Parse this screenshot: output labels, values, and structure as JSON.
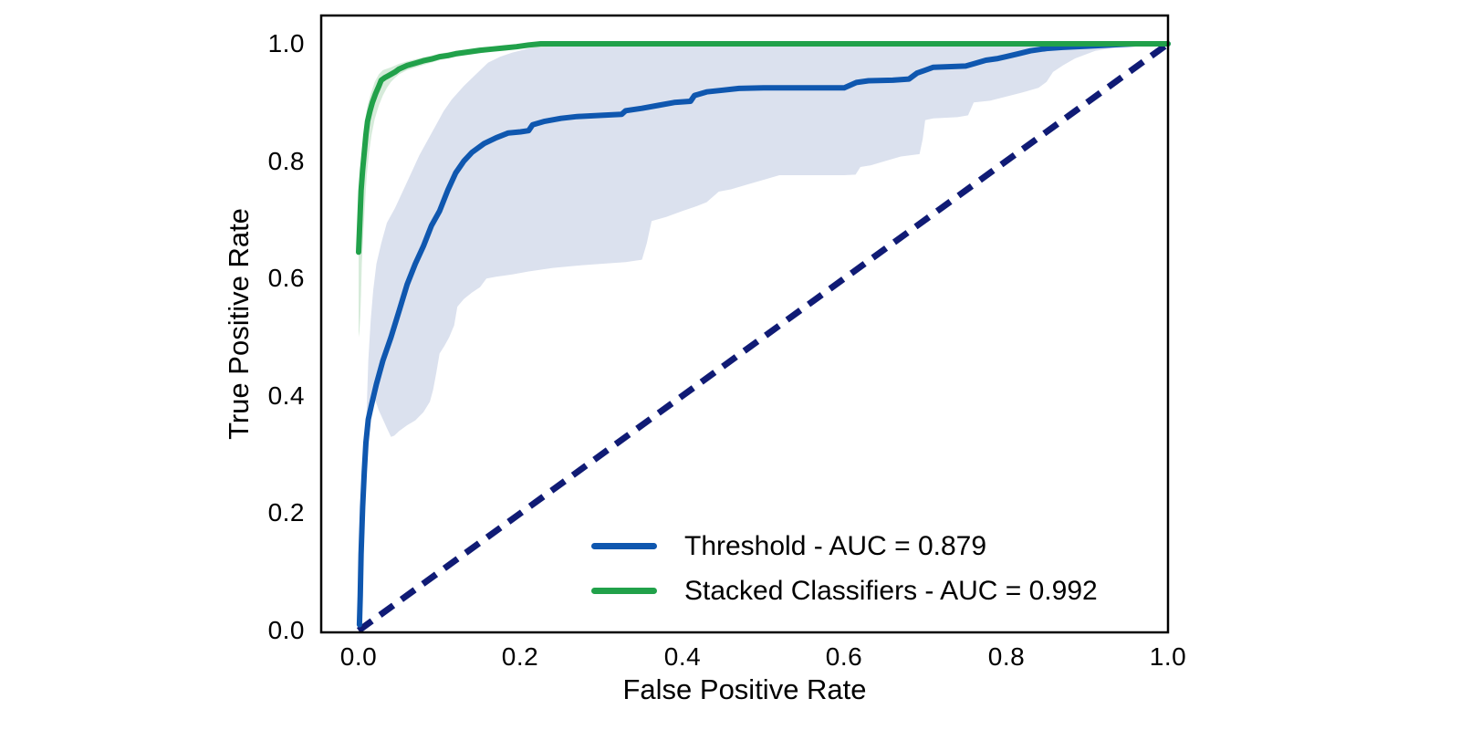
{
  "chart_data": {
    "type": "line",
    "title": "",
    "xlabel": "False Positive Rate",
    "ylabel": "True Positive Rate",
    "xlim": [
      -0.046,
      1.0
    ],
    "ylim": [
      0.0,
      1.048
    ],
    "grid": false,
    "legend_position": "lower-right",
    "x_tick_labels": [
      "0.0",
      "0.2",
      "0.4",
      "0.6",
      "0.8",
      "1.0"
    ],
    "y_tick_labels": [
      "0.0",
      "0.2",
      "0.4",
      "0.6",
      "0.8",
      "1.0"
    ],
    "diagonal": {
      "name": "chance-line",
      "style": "dashed",
      "color": "#101b75",
      "dash": "18 11",
      "width": 7,
      "from": [
        0,
        0
      ],
      "to": [
        1,
        1
      ]
    },
    "series": [
      {
        "name": "Threshold - AUC = 0.879",
        "auc": 0.879,
        "color": "#0f57af",
        "band_color": "#dbe1ee",
        "band_opacity": 1.0,
        "points": [
          [
            0.001,
            0.01
          ],
          [
            0.002,
            0.06
          ],
          [
            0.003,
            0.13
          ],
          [
            0.005,
            0.21
          ],
          [
            0.007,
            0.27
          ],
          [
            0.009,
            0.32
          ],
          [
            0.012,
            0.36
          ],
          [
            0.016,
            0.385
          ],
          [
            0.022,
            0.42
          ],
          [
            0.03,
            0.46
          ],
          [
            0.04,
            0.5
          ],
          [
            0.05,
            0.545
          ],
          [
            0.06,
            0.59
          ],
          [
            0.07,
            0.625
          ],
          [
            0.08,
            0.655
          ],
          [
            0.09,
            0.69
          ],
          [
            0.1,
            0.715
          ],
          [
            0.11,
            0.75
          ],
          [
            0.12,
            0.78
          ],
          [
            0.13,
            0.8
          ],
          [
            0.14,
            0.815
          ],
          [
            0.155,
            0.83
          ],
          [
            0.17,
            0.84
          ],
          [
            0.185,
            0.848
          ],
          [
            0.2,
            0.85
          ],
          [
            0.21,
            0.852
          ],
          [
            0.215,
            0.862
          ],
          [
            0.23,
            0.868
          ],
          [
            0.25,
            0.873
          ],
          [
            0.27,
            0.876
          ],
          [
            0.3,
            0.878
          ],
          [
            0.325,
            0.88
          ],
          [
            0.33,
            0.886
          ],
          [
            0.35,
            0.89
          ],
          [
            0.37,
            0.895
          ],
          [
            0.39,
            0.9
          ],
          [
            0.41,
            0.902
          ],
          [
            0.415,
            0.912
          ],
          [
            0.43,
            0.918
          ],
          [
            0.45,
            0.921
          ],
          [
            0.47,
            0.924
          ],
          [
            0.5,
            0.925
          ],
          [
            0.6,
            0.925
          ],
          [
            0.615,
            0.934
          ],
          [
            0.63,
            0.937
          ],
          [
            0.66,
            0.938
          ],
          [
            0.68,
            0.94
          ],
          [
            0.69,
            0.95
          ],
          [
            0.7,
            0.955
          ],
          [
            0.71,
            0.96
          ],
          [
            0.75,
            0.962
          ],
          [
            0.76,
            0.966
          ],
          [
            0.775,
            0.972
          ],
          [
            0.79,
            0.975
          ],
          [
            0.8,
            0.978
          ],
          [
            0.815,
            0.983
          ],
          [
            0.83,
            0.988
          ],
          [
            0.85,
            0.992
          ],
          [
            0.87,
            0.994
          ],
          [
            0.9,
            0.996
          ],
          [
            0.93,
            0.998
          ],
          [
            0.96,
            1.0
          ],
          [
            1.0,
            1.0
          ]
        ],
        "band": [
          [
            0.008,
            0.3
          ],
          [
            0.01,
            0.38
          ],
          [
            0.012,
            0.46
          ],
          [
            0.015,
            0.53
          ],
          [
            0.018,
            0.58
          ],
          [
            0.022,
            0.625
          ],
          [
            0.028,
            0.66
          ],
          [
            0.035,
            0.695
          ],
          [
            0.045,
            0.72
          ],
          [
            0.055,
            0.75
          ],
          [
            0.065,
            0.78
          ],
          [
            0.075,
            0.81
          ],
          [
            0.085,
            0.835
          ],
          [
            0.095,
            0.86
          ],
          [
            0.105,
            0.885
          ],
          [
            0.115,
            0.905
          ],
          [
            0.13,
            0.928
          ],
          [
            0.145,
            0.948
          ],
          [
            0.16,
            0.968
          ],
          [
            0.175,
            0.978
          ],
          [
            0.19,
            0.985
          ],
          [
            0.21,
            0.992
          ],
          [
            0.23,
            0.997
          ],
          [
            0.26,
            1.0
          ],
          [
            0.97,
            1.0
          ],
          [
            0.97,
            0.998
          ],
          [
            0.94,
            0.995
          ],
          [
            0.91,
            0.988
          ],
          [
            0.885,
            0.975
          ],
          [
            0.87,
            0.963
          ],
          [
            0.858,
            0.952
          ],
          [
            0.85,
            0.935
          ],
          [
            0.84,
            0.925
          ],
          [
            0.82,
            0.917
          ],
          [
            0.8,
            0.91
          ],
          [
            0.78,
            0.903
          ],
          [
            0.76,
            0.9
          ],
          [
            0.753,
            0.878
          ],
          [
            0.74,
            0.875
          ],
          [
            0.71,
            0.873
          ],
          [
            0.7,
            0.87
          ],
          [
            0.697,
            0.838
          ],
          [
            0.693,
            0.812
          ],
          [
            0.67,
            0.808
          ],
          [
            0.65,
            0.8
          ],
          [
            0.633,
            0.793
          ],
          [
            0.62,
            0.79
          ],
          [
            0.614,
            0.777
          ],
          [
            0.6,
            0.776
          ],
          [
            0.52,
            0.776
          ],
          [
            0.505,
            0.77
          ],
          [
            0.48,
            0.76
          ],
          [
            0.46,
            0.752
          ],
          [
            0.445,
            0.748
          ],
          [
            0.43,
            0.73
          ],
          [
            0.415,
            0.722
          ],
          [
            0.4,
            0.715
          ],
          [
            0.38,
            0.705
          ],
          [
            0.362,
            0.698
          ],
          [
            0.356,
            0.66
          ],
          [
            0.35,
            0.632
          ],
          [
            0.33,
            0.628
          ],
          [
            0.3,
            0.625
          ],
          [
            0.27,
            0.622
          ],
          [
            0.24,
            0.618
          ],
          [
            0.21,
            0.612
          ],
          [
            0.19,
            0.607
          ],
          [
            0.17,
            0.603
          ],
          [
            0.158,
            0.6
          ],
          [
            0.15,
            0.585
          ],
          [
            0.14,
            0.576
          ],
          [
            0.13,
            0.565
          ],
          [
            0.122,
            0.552
          ],
          [
            0.118,
            0.52
          ],
          [
            0.112,
            0.5
          ],
          [
            0.106,
            0.485
          ],
          [
            0.1,
            0.472
          ],
          [
            0.096,
            0.44
          ],
          [
            0.092,
            0.41
          ],
          [
            0.088,
            0.39
          ],
          [
            0.08,
            0.372
          ],
          [
            0.07,
            0.358
          ],
          [
            0.06,
            0.35
          ],
          [
            0.05,
            0.34
          ],
          [
            0.044,
            0.332
          ],
          [
            0.04,
            0.33
          ],
          [
            0.035,
            0.345
          ],
          [
            0.03,
            0.36
          ],
          [
            0.025,
            0.375
          ],
          [
            0.02,
            0.395
          ],
          [
            0.016,
            0.37
          ],
          [
            0.012,
            0.34
          ],
          [
            0.008,
            0.3
          ]
        ]
      },
      {
        "name": "Stacked Classifiers - AUC = 0.992",
        "auc": 0.992,
        "color": "#21a14a",
        "band_color": "#cfe8d4",
        "band_opacity": 0.85,
        "points": [
          [
            0.0,
            0.645
          ],
          [
            0.001,
            0.68
          ],
          [
            0.002,
            0.715
          ],
          [
            0.003,
            0.75
          ],
          [
            0.005,
            0.785
          ],
          [
            0.007,
            0.815
          ],
          [
            0.009,
            0.845
          ],
          [
            0.011,
            0.868
          ],
          [
            0.014,
            0.885
          ],
          [
            0.017,
            0.9
          ],
          [
            0.021,
            0.915
          ],
          [
            0.025,
            0.928
          ],
          [
            0.028,
            0.938
          ],
          [
            0.032,
            0.942
          ],
          [
            0.036,
            0.945
          ],
          [
            0.04,
            0.948
          ],
          [
            0.045,
            0.952
          ],
          [
            0.05,
            0.957
          ],
          [
            0.06,
            0.963
          ],
          [
            0.07,
            0.967
          ],
          [
            0.08,
            0.971
          ],
          [
            0.09,
            0.974
          ],
          [
            0.1,
            0.978
          ],
          [
            0.11,
            0.98
          ],
          [
            0.12,
            0.983
          ],
          [
            0.13,
            0.985
          ],
          [
            0.14,
            0.987
          ],
          [
            0.15,
            0.989
          ],
          [
            0.165,
            0.991
          ],
          [
            0.18,
            0.993
          ],
          [
            0.195,
            0.995
          ],
          [
            0.21,
            0.998
          ],
          [
            0.225,
            1.0
          ],
          [
            1.0,
            1.0
          ]
        ],
        "band": [
          [
            0.0,
            0.66
          ],
          [
            0.002,
            0.75
          ],
          [
            0.004,
            0.8
          ],
          [
            0.006,
            0.84
          ],
          [
            0.008,
            0.87
          ],
          [
            0.011,
            0.895
          ],
          [
            0.015,
            0.915
          ],
          [
            0.02,
            0.935
          ],
          [
            0.025,
            0.948
          ],
          [
            0.03,
            0.955
          ],
          [
            0.04,
            0.96
          ],
          [
            0.05,
            0.966
          ],
          [
            0.06,
            0.97
          ],
          [
            0.08,
            0.977
          ],
          [
            0.1,
            0.983
          ],
          [
            0.12,
            0.988
          ],
          [
            0.14,
            0.991
          ],
          [
            0.16,
            0.994
          ],
          [
            0.18,
            0.997
          ],
          [
            0.2,
            1.0
          ],
          [
            0.24,
            1.0
          ],
          [
            0.24,
            0.995
          ],
          [
            0.2,
            0.992
          ],
          [
            0.18,
            0.989
          ],
          [
            0.16,
            0.986
          ],
          [
            0.14,
            0.982
          ],
          [
            0.12,
            0.978
          ],
          [
            0.1,
            0.972
          ],
          [
            0.08,
            0.964
          ],
          [
            0.06,
            0.955
          ],
          [
            0.05,
            0.948
          ],
          [
            0.045,
            0.942
          ],
          [
            0.04,
            0.935
          ],
          [
            0.035,
            0.925
          ],
          [
            0.03,
            0.912
          ],
          [
            0.025,
            0.895
          ],
          [
            0.02,
            0.872
          ],
          [
            0.016,
            0.845
          ],
          [
            0.013,
            0.815
          ],
          [
            0.01,
            0.775
          ],
          [
            0.008,
            0.73
          ],
          [
            0.006,
            0.68
          ],
          [
            0.004,
            0.625
          ],
          [
            0.003,
            0.575
          ],
          [
            0.002,
            0.535
          ],
          [
            0.001,
            0.51
          ],
          [
            0.0,
            0.5
          ]
        ]
      }
    ]
  },
  "legend": {
    "items": [
      {
        "label": "Threshold - AUC = 0.879"
      },
      {
        "label": "Stacked Classifiers - AUC = 0.992"
      }
    ]
  }
}
